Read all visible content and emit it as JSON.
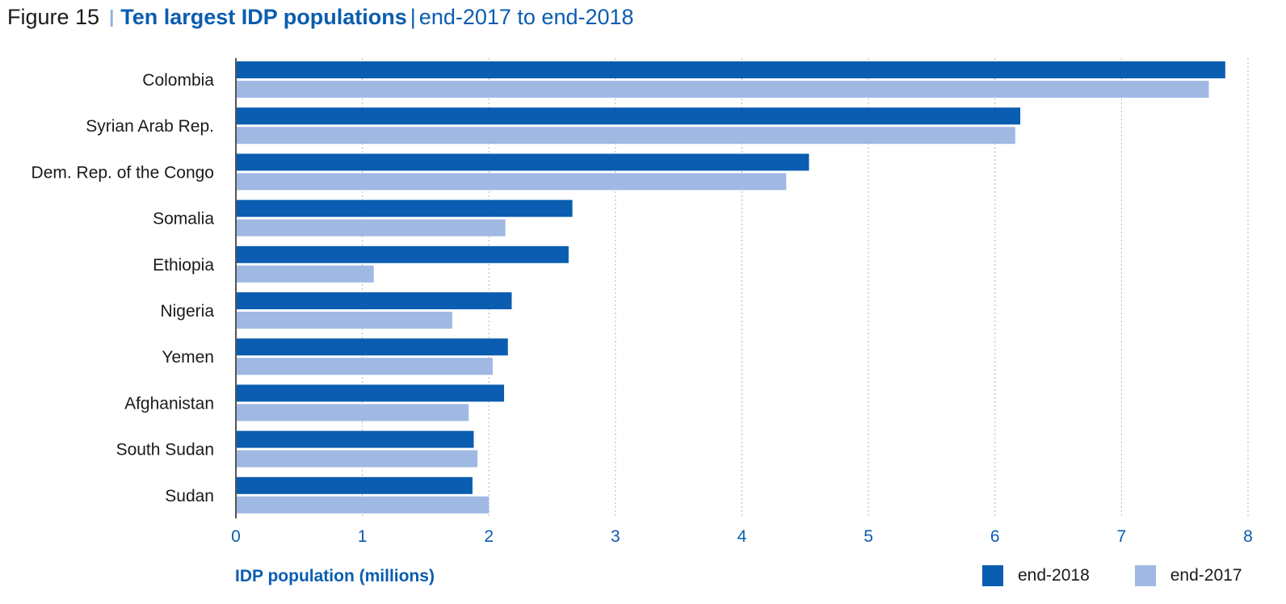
{
  "title": {
    "figure": "Figure 15",
    "separator": "|",
    "main": "Ten largest IDP populations",
    "pipe": "|",
    "subtitle": "end-2017 to end-2018"
  },
  "colors": {
    "series_2018": "#0a5db0",
    "series_2017": "#9fb9e3",
    "tick_text": "#0a5db0",
    "grid": "#b5b5b5",
    "axis": "#555555"
  },
  "chart_data": {
    "type": "bar",
    "orientation": "horizontal",
    "title": "Ten largest IDP populations",
    "xlabel": "IDP population (millions)",
    "ylabel": "",
    "xlim": [
      0,
      8
    ],
    "xticks": [
      0,
      1,
      2,
      3,
      4,
      5,
      6,
      7,
      8
    ],
    "grid": true,
    "legend_position": "bottom-right",
    "categories": [
      "Colombia",
      "Syrian Arab Rep.",
      "Dem. Rep. of the Congo",
      "Somalia",
      "Ethiopia",
      "Nigeria",
      "Yemen",
      "Afghanistan",
      "South Sudan",
      "Sudan"
    ],
    "series": [
      {
        "name": "end-2018",
        "values": [
          7.82,
          6.2,
          4.53,
          2.66,
          2.63,
          2.18,
          2.15,
          2.12,
          1.88,
          1.87
        ]
      },
      {
        "name": "end-2017",
        "values": [
          7.69,
          6.16,
          4.35,
          2.13,
          1.09,
          1.71,
          2.03,
          1.84,
          1.91,
          2.0
        ]
      }
    ]
  },
  "legend": {
    "items": [
      {
        "label": "end-2018"
      },
      {
        "label": "end-2017"
      }
    ]
  },
  "axis": {
    "x_title": "IDP population (millions)"
  }
}
